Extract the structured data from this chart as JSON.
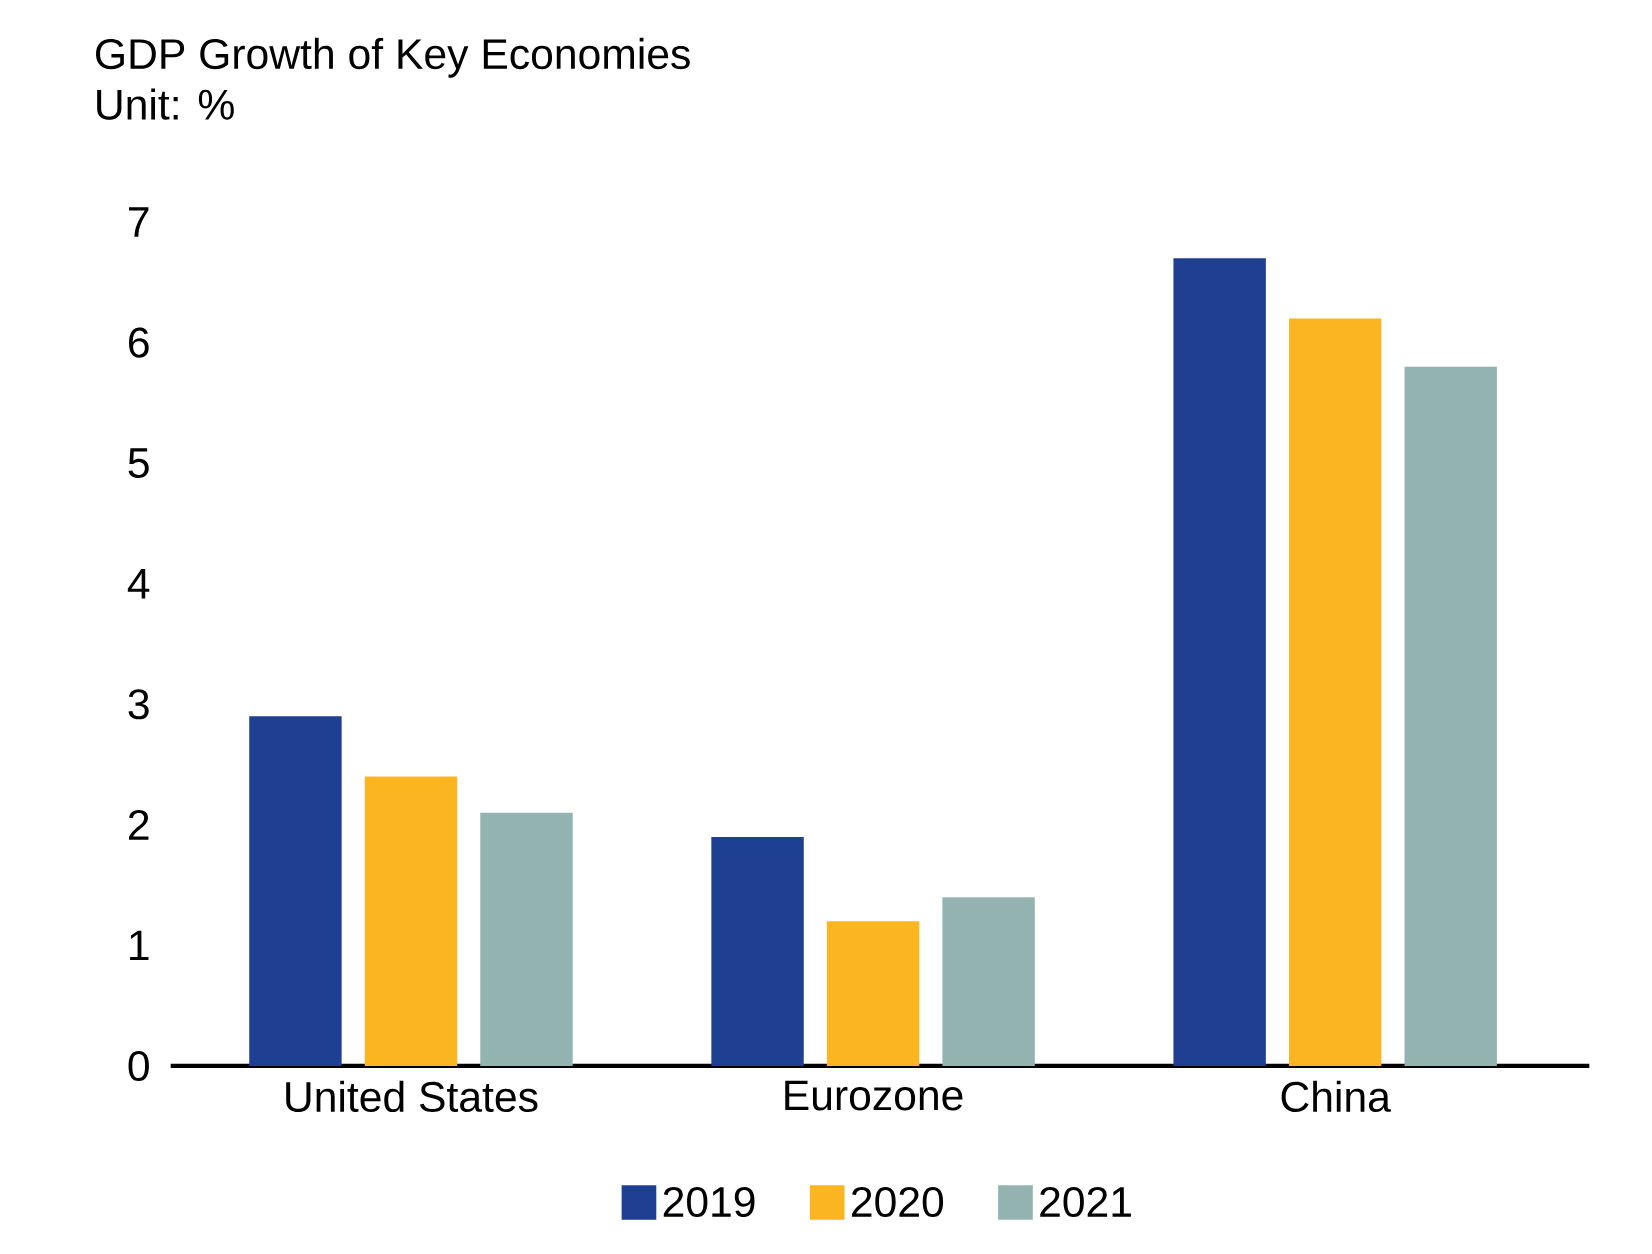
{
  "chart_data": {
    "type": "bar",
    "title": "GDP Growth of Key Economies",
    "subtitle": "Unit: %",
    "categories": [
      "United States",
      "Eurozone",
      "China"
    ],
    "series": [
      {
        "name": "2019",
        "color": "#1f3f93",
        "values": [
          2.9,
          1.9,
          6.7
        ]
      },
      {
        "name": "2020",
        "color": "#fbb521",
        "values": [
          2.4,
          1.2,
          6.2
        ]
      },
      {
        "name": "2021",
        "color": "#93b3b1",
        "values": [
          2.1,
          1.4,
          5.8
        ]
      }
    ],
    "ylim": [
      0,
      7
    ],
    "yticks": [
      0,
      1,
      2,
      3,
      4,
      5,
      6,
      7
    ],
    "legend": "bottom"
  }
}
